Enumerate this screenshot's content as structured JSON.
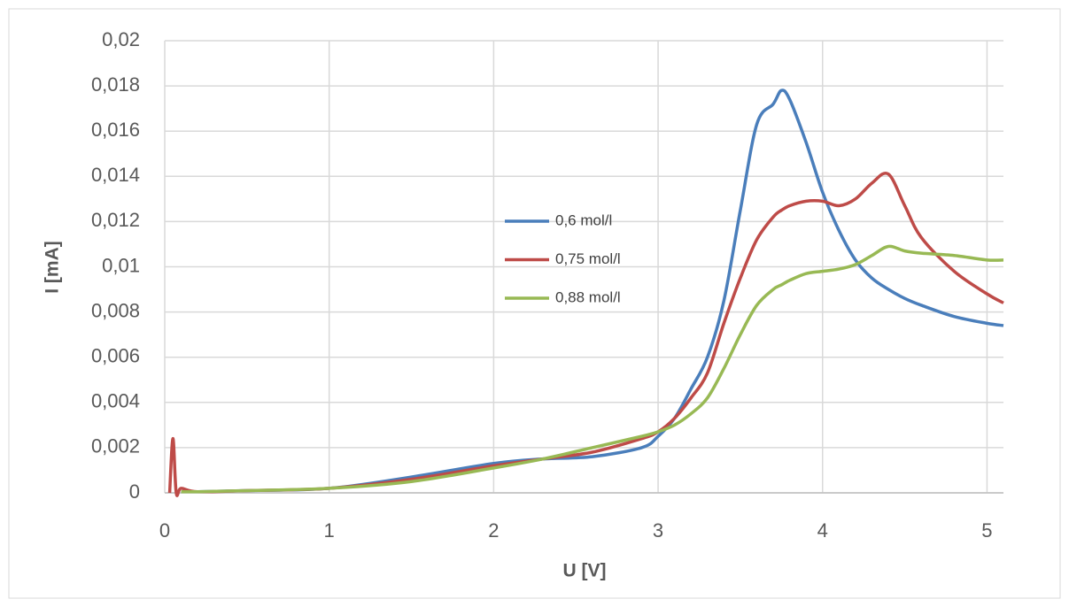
{
  "chart_data": {
    "type": "line",
    "x_label": "U [V]",
    "y_label": "I [mA]",
    "x": [
      0.03,
      0.05,
      0.07,
      0.1,
      0.2,
      0.5,
      1,
      1.5,
      2,
      2.3,
      2.6,
      2.9,
      3,
      3.1,
      3.2,
      3.3,
      3.4,
      3.5,
      3.6,
      3.7,
      3.75,
      3.8,
      3.9,
      4,
      4.1,
      4.2,
      4.3,
      4.4,
      4.5,
      4.6,
      4.8,
      5,
      5.1
    ],
    "series": [
      {
        "name": "0,6 mol/l",
        "color": "#4a7ebb",
        "values": [
          null,
          null,
          null,
          5e-05,
          5e-05,
          0.0001,
          0.0002,
          0.0007,
          0.0013,
          0.0015,
          0.0016,
          0.002,
          0.0025,
          0.0033,
          0.0046,
          0.006,
          0.0085,
          0.0125,
          0.0163,
          0.0172,
          0.0178,
          0.0174,
          0.0155,
          0.0133,
          0.0116,
          0.0103,
          0.0095,
          0.009,
          0.0086,
          0.0083,
          0.0078,
          0.0075,
          0.0074
        ]
      },
      {
        "name": "0,75 mol/l",
        "color": "#be4b48",
        "values": [
          0,
          0.0024,
          0,
          0.0002,
          5e-05,
          0.0001,
          0.0002,
          0.0006,
          0.0012,
          0.0015,
          0.0018,
          0.0024,
          0.0027,
          0.0033,
          0.0042,
          0.0053,
          0.0075,
          0.0095,
          0.0112,
          0.0122,
          0.0125,
          0.0127,
          0.0129,
          0.0129,
          0.0127,
          0.013,
          0.0137,
          0.0141,
          0.0127,
          0.0113,
          0.0098,
          0.0088,
          0.0084
        ]
      },
      {
        "name": "0,88 mol/l",
        "color": "#98b954",
        "values": [
          null,
          null,
          null,
          5e-05,
          5e-05,
          0.0001,
          0.0002,
          0.0005,
          0.0011,
          0.0015,
          0.002,
          0.0025,
          0.0027,
          0.003,
          0.0035,
          0.0042,
          0.0055,
          0.007,
          0.0083,
          0.009,
          0.0092,
          0.0094,
          0.0097,
          0.0098,
          0.0099,
          0.0101,
          0.0105,
          0.0109,
          0.0107,
          0.0106,
          0.0105,
          0.0103,
          0.0103
        ]
      }
    ],
    "xlim": [
      0,
      5.1
    ],
    "xticks": [
      0,
      1,
      2,
      3,
      4,
      5
    ],
    "ylim": [
      0,
      0.02
    ],
    "yticks": [
      0,
      {
        "value": 0.002,
        "label": "0,002"
      },
      {
        "value": 0.004,
        "label": "0,004"
      },
      {
        "value": 0.006,
        "label": "0,006"
      },
      {
        "value": 0.008,
        "label": "0,008"
      },
      {
        "value": 0.01,
        "label": "0,01"
      },
      {
        "value": 0.012,
        "label": "0,012"
      },
      {
        "value": 0.014,
        "label": "0,014"
      },
      {
        "value": 0.016,
        "label": "0,016"
      },
      {
        "value": 0.018,
        "label": "0,018"
      },
      {
        "value": 0.02,
        "label": "0,02"
      }
    ],
    "grid": true,
    "legend": "center"
  }
}
